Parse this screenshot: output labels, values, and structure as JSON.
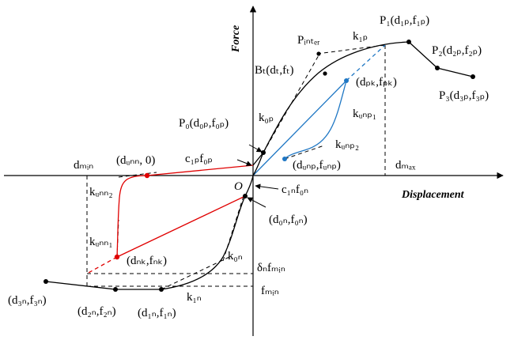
{
  "axes": {
    "x_label": "Displacement",
    "y_label": "Force",
    "origin": "O"
  },
  "colors": {
    "envelope": "#000000",
    "negative_unloading": "#e00000",
    "positive_unloading": "#1f77c4",
    "guides": "#000000"
  },
  "labels": {
    "P1": "P₁(d₁ₚ,f₁ₚ)",
    "P2": "P₂(d₂ₚ,f₂ₚ)",
    "P3": "P₃(d₃ₚ,f₃ₚ)",
    "Pinter": "Pᵢₙₜₑᵣ",
    "k1p": "k₁ₚ",
    "Bt": "Bₜ(dₜ,fₜ)",
    "dpk_fpk": "(dₚₖ,fₚₖ)",
    "kunp1": "kᵤₙₚ₁",
    "kunp2": "kᵤₙₚ₂",
    "dunp_funp": "(dᵤₙₚ,fᵤₙₚ)",
    "dmax": "dₘₐₓ",
    "k0p": "k₀ₚ",
    "P0": "P₀(d₀ₚ,f₀ₚ)",
    "c1p_f0p": "c₁ₚf₀ₚ",
    "dmin": "dₘᵢₙ",
    "dunn_0": "(dᵤₙₙ, 0)",
    "kunn2": "kᵤₙₙ₂",
    "c1n_f0n": "c₁ₙf₀ₙ",
    "d0n_f0n": "(d₀ₙ,f₀ₙ)",
    "kunn1": "kᵤₙₙ₁",
    "dnk_fnk": "(dₙₖ,fₙₖ)",
    "k0n": "k₀ₙ",
    "delta_fmin": "δₙfₘᵢₙ",
    "fmin": "fₘᵢₙ",
    "k1n": "k₁ₙ",
    "d3n_f3n": "(d₃ₙ,f₃ₙ)",
    "d2n_f2n": "(d₂ₙ,f₂ₙ)",
    "d1n_f1n": "(d₁ₙ,f₁ₙ)"
  }
}
